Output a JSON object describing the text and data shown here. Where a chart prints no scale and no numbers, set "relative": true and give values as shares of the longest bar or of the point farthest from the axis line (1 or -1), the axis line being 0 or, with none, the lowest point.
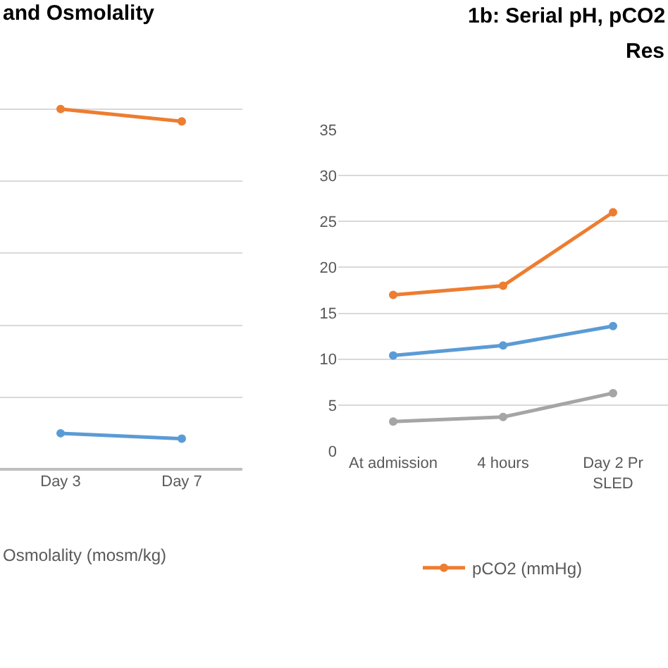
{
  "chart_data": [
    {
      "type": "line",
      "title": "and Osmolality",
      "categories": [
        "Day 3",
        "Day 7"
      ],
      "relative": true,
      "grid": "y",
      "marker": "circle",
      "legend": false,
      "tick_labels": "x",
      "annotations": [
        "Osmolality (mosm/kg)"
      ],
      "series": [
        {
          "color": "#ed7d31",
          "values": [
            1,
            0.966
          ]
        },
        {
          "color": "#5b9bd5",
          "values": [
            0.1,
            0.085
          ]
        }
      ]
    },
    {
      "type": "line",
      "title": "1b: Serial pH, pCO2",
      "subtitle": "Res",
      "categories": [
        "At admission",
        "4 hours",
        "Day 2 Pr\nSLED"
      ],
      "ylim": [
        0,
        35
      ],
      "yticks": [
        0,
        5,
        10,
        15,
        20,
        25,
        30,
        35
      ],
      "grid": "y",
      "marker": "circle",
      "legend": "bottom",
      "series": [
        {
          "name": "pCO2 (mmHg)",
          "color": "#ed7d31",
          "values": [
            17,
            18,
            26
          ]
        },
        {
          "color": "#5b9bd5",
          "values": [
            10.4,
            11.5,
            13.6
          ]
        },
        {
          "color": "#a5a5a5",
          "values": [
            3.2,
            3.7,
            6.3
          ]
        }
      ]
    }
  ]
}
